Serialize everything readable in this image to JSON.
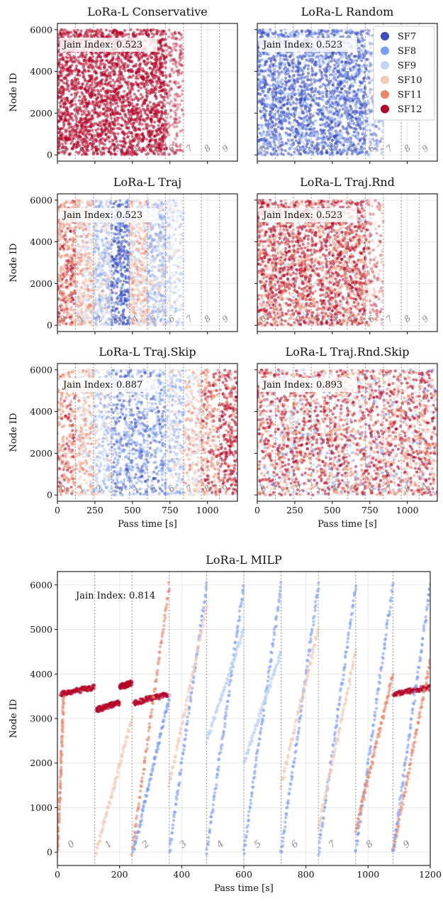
{
  "figure": {
    "x_label": "Pass time [s]",
    "y_label": "Node ID",
    "window_labels": [
      "0",
      "1",
      "2",
      "3",
      "4",
      "5",
      "6",
      "7",
      "8",
      "9"
    ],
    "window_boundaries_s": [
      0,
      120,
      240,
      360,
      480,
      600,
      720,
      840,
      960,
      1080,
      1200
    ]
  },
  "colors": {
    "SF7": "#3b4cc0",
    "SF8": "#7b9ff9",
    "SF9": "#c0d4f5",
    "SF10": "#f2cbb7",
    "SF11": "#ee8468",
    "SF12": "#b40426"
  },
  "legend": [
    "SF7",
    "SF8",
    "SF9",
    "SF10",
    "SF11",
    "SF12"
  ],
  "chart_data": [
    {
      "type": "scatter",
      "title": "LoRa-L Conservative",
      "annotation": "Jain Index: 0.523",
      "xlim": [
        0,
        1200
      ],
      "ylim": [
        -300,
        6300
      ],
      "x_ticks": [
        0,
        250,
        500,
        750,
        1000
      ],
      "x_tick_labels": [],
      "y_ticks": [
        0,
        2000,
        4000,
        6000
      ],
      "y_tick_labels": [
        "0",
        "2000",
        "4000",
        "6000"
      ],
      "nodes": [
        0,
        6000
      ],
      "active_until_s": 730,
      "dominant_sf": "SF12",
      "sf_mix": {
        "SF12": 1.0
      }
    },
    {
      "type": "scatter",
      "title": "LoRa-L Random",
      "annotation": "Jain Index: 0.523",
      "xlim": [
        0,
        1200
      ],
      "ylim": [
        -300,
        6300
      ],
      "x_ticks": [
        0,
        250,
        500,
        750,
        1000
      ],
      "x_tick_labels": [],
      "y_ticks": [
        0,
        2000,
        4000,
        6000
      ],
      "y_tick_labels": [],
      "nodes": [
        0,
        6000
      ],
      "active_until_s": 730,
      "dominant_sf": "SF7",
      "sf_mix": {
        "SF7": 0.55,
        "SF8": 0.3,
        "SF9": 0.15
      },
      "legend_position": "upper right"
    },
    {
      "type": "scatter",
      "title": "LoRa-L Traj",
      "annotation": "Jain Index: 0.523",
      "xlim": [
        0,
        1200
      ],
      "ylim": [
        -300,
        6300
      ],
      "x_ticks": [
        0,
        250,
        500,
        750,
        1000
      ],
      "x_tick_labels": [],
      "y_ticks": [
        0,
        2000,
        4000,
        6000
      ],
      "y_tick_labels": [
        "0",
        "2000",
        "4000",
        "6000"
      ],
      "nodes": [
        0,
        6000
      ],
      "active_until_s": 730,
      "sf_by_window": [
        "SF11",
        "SF10",
        "SF9",
        "SF7",
        "SF10",
        "SF9"
      ]
    },
    {
      "type": "scatter",
      "title": "LoRa-L Traj.Rnd",
      "annotation": "Jain Index: 0.523",
      "xlim": [
        0,
        1200
      ],
      "ylim": [
        -300,
        6300
      ],
      "x_ticks": [
        0,
        250,
        500,
        750,
        1000
      ],
      "x_tick_labels": [],
      "y_ticks": [
        0,
        2000,
        4000,
        6000
      ],
      "y_tick_labels": [],
      "nodes": [
        0,
        6000
      ],
      "active_until_s": 730,
      "sf_mix": {
        "SF12": 0.45,
        "SF11": 0.3,
        "SF10": 0.2,
        "SF9": 0.05
      }
    },
    {
      "type": "scatter",
      "title": "LoRa-L Traj.Skip",
      "annotation": "Jain Index: 0.887",
      "xlim": [
        0,
        1200
      ],
      "ylim": [
        -300,
        6300
      ],
      "x_ticks": [
        0,
        250,
        500,
        750,
        1000
      ],
      "x_tick_labels": [
        "0",
        "250",
        "500",
        "750",
        "1000"
      ],
      "y_ticks": [
        0,
        2000,
        4000,
        6000
      ],
      "y_tick_labels": [
        "0",
        "2000",
        "4000",
        "6000"
      ],
      "nodes": [
        0,
        6000
      ],
      "active_until_s": 1200,
      "sf_by_window": [
        "SF11",
        "SF10",
        "SF9",
        "SF8",
        "SF8",
        "SF8",
        "SF9",
        "SF10",
        "SF11",
        "SF12"
      ]
    },
    {
      "type": "scatter",
      "title": "LoRa-L Traj.Rnd.Skip",
      "annotation": "Jain Index: 0.893",
      "xlim": [
        0,
        1200
      ],
      "ylim": [
        -300,
        6300
      ],
      "x_ticks": [
        0,
        250,
        500,
        750,
        1000
      ],
      "x_tick_labels": [
        "0",
        "250",
        "500",
        "750",
        "1000"
      ],
      "y_ticks": [
        0,
        2000,
        4000,
        6000
      ],
      "y_tick_labels": [],
      "nodes": [
        0,
        6000
      ],
      "active_until_s": 1200,
      "sf_mix": {
        "SF12": 0.35,
        "SF11": 0.3,
        "SF10": 0.2,
        "SF9": 0.1,
        "SF8": 0.05
      }
    },
    {
      "type": "scatter",
      "title": "LoRa-L MILP",
      "annotation": "Jain Index: 0.814",
      "xlim": [
        0,
        1200
      ],
      "ylim": [
        -300,
        6300
      ],
      "x_ticks": [
        0,
        200,
        400,
        600,
        800,
        1000,
        1200
      ],
      "x_tick_labels": [
        "0",
        "200",
        "400",
        "600",
        "800",
        "1000",
        "1200"
      ],
      "y_ticks": [
        0,
        1000,
        2000,
        3000,
        4000,
        5000,
        6000
      ],
      "y_tick_labels": [
        "0",
        "1000",
        "2000",
        "3000",
        "4000",
        "5000",
        "6000"
      ],
      "nodes": [
        0,
        6000
      ],
      "trajectories": [
        {
          "sf": "SF12",
          "t": [
            10,
            120
          ],
          "nodes": [
            3550,
            3700
          ]
        },
        {
          "sf": "SF11",
          "t": [
            0,
            20
          ],
          "nodes": [
            0,
            3500
          ]
        },
        {
          "sf": "SF12",
          "t": [
            125,
            200
          ],
          "nodes": [
            3200,
            3350
          ]
        },
        {
          "sf": "SF12",
          "t": [
            200,
            240
          ],
          "nodes": [
            3700,
            3800
          ]
        },
        {
          "sf": "SF10",
          "t": [
            125,
            240
          ],
          "nodes": [
            0,
            3000
          ]
        },
        {
          "sf": "SF12",
          "t": [
            245,
            355
          ],
          "nodes": [
            3350,
            3550
          ]
        },
        {
          "sf": "SF11",
          "t": [
            240,
            360
          ],
          "nodes": [
            0,
            6000
          ]
        },
        {
          "sf": "SF8",
          "t": [
            245,
            360
          ],
          "nodes": [
            0,
            3500
          ]
        },
        {
          "sf": "SF8",
          "t": [
            360,
            480
          ],
          "nodes": [
            0,
            6000
          ]
        },
        {
          "sf": "SF10",
          "t": [
            360,
            480
          ],
          "nodes": [
            1500,
            5500
          ]
        },
        {
          "sf": "SF8",
          "t": [
            480,
            600
          ],
          "nodes": [
            0,
            6000
          ]
        },
        {
          "sf": "SF9",
          "t": [
            480,
            600
          ],
          "nodes": [
            2500,
            5000
          ]
        },
        {
          "sf": "SF8",
          "t": [
            600,
            720
          ],
          "nodes": [
            0,
            6000
          ]
        },
        {
          "sf": "SF9",
          "t": [
            600,
            720
          ],
          "nodes": [
            2000,
            4500
          ]
        },
        {
          "sf": "SF8",
          "t": [
            720,
            840
          ],
          "nodes": [
            0,
            6000
          ]
        },
        {
          "sf": "SF10",
          "t": [
            720,
            840
          ],
          "nodes": [
            1500,
            5000
          ]
        },
        {
          "sf": "SF8",
          "t": [
            840,
            960
          ],
          "nodes": [
            0,
            6000
          ]
        },
        {
          "sf": "SF10",
          "t": [
            840,
            960
          ],
          "nodes": [
            500,
            4500
          ]
        },
        {
          "sf": "SF8",
          "t": [
            960,
            1080
          ],
          "nodes": [
            0,
            6000
          ]
        },
        {
          "sf": "SF11",
          "t": [
            960,
            1080
          ],
          "nodes": [
            500,
            4000
          ]
        },
        {
          "sf": "SF12",
          "t": [
            1080,
            1200
          ],
          "nodes": [
            3550,
            3700
          ]
        },
        {
          "sf": "SF11",
          "t": [
            1080,
            1200
          ],
          "nodes": [
            0,
            4300
          ]
        },
        {
          "sf": "SF8",
          "t": [
            1080,
            1200
          ],
          "nodes": [
            0,
            6000
          ]
        }
      ]
    }
  ]
}
